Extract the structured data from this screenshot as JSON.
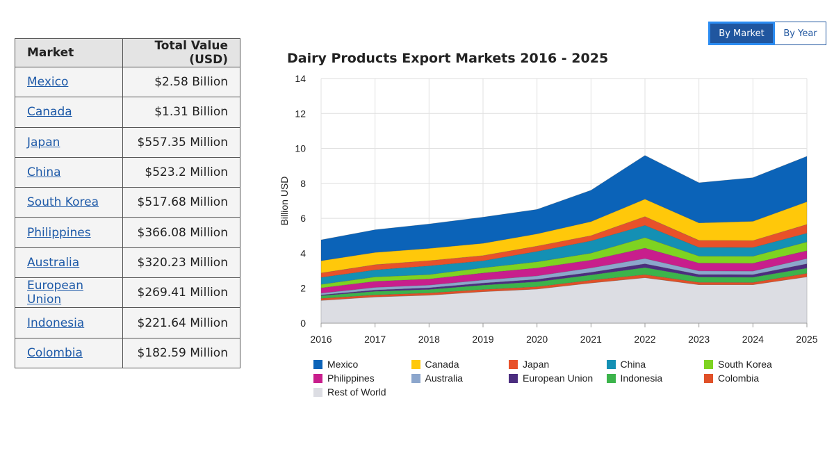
{
  "table": {
    "headers": [
      "Market",
      "Total Value (USD)"
    ],
    "rows": [
      {
        "market": "Mexico",
        "value": "$2.58 Billion"
      },
      {
        "market": "Canada",
        "value": "$1.31 Billion"
      },
      {
        "market": "Japan",
        "value": "$557.35 Million"
      },
      {
        "market": "China",
        "value": "$523.2 Million"
      },
      {
        "market": "South Korea",
        "value": "$517.68 Million"
      },
      {
        "market": "Philippines",
        "value": "$366.08 Million"
      },
      {
        "market": "Australia",
        "value": "$320.23 Million"
      },
      {
        "market": "European Union",
        "value": "$269.41 Million"
      },
      {
        "market": "Indonesia",
        "value": "$221.64 Million"
      },
      {
        "market": "Colombia",
        "value": "$182.59 Million"
      }
    ]
  },
  "toggle": {
    "by_market": "By Market",
    "by_year": "By Year",
    "selected": "By Market"
  },
  "chart_data": {
    "type": "area",
    "stacked": true,
    "title": "Dairy Products Export Markets 2016 - 2025",
    "xlabel": "",
    "ylabel": "Billion USD",
    "ylim": [
      0,
      14
    ],
    "yticks": [
      0,
      2,
      4,
      6,
      8,
      10,
      12,
      14
    ],
    "grid": true,
    "legend_position": "bottom",
    "x": [
      "2016",
      "2017",
      "2018",
      "2019",
      "2020",
      "2021",
      "2022",
      "2023",
      "2024",
      "2025"
    ],
    "series": [
      {
        "name": "Rest of World",
        "color": "#dcdde3",
        "values": [
          1.3,
          1.5,
          1.6,
          1.8,
          1.95,
          2.3,
          2.6,
          2.2,
          2.2,
          2.65
        ]
      },
      {
        "name": "Colombia",
        "color": "#e05028",
        "values": [
          0.12,
          0.12,
          0.13,
          0.13,
          0.14,
          0.16,
          0.18,
          0.14,
          0.13,
          0.2
        ]
      },
      {
        "name": "Indonesia",
        "color": "#3cb44b",
        "values": [
          0.15,
          0.2,
          0.2,
          0.25,
          0.28,
          0.3,
          0.4,
          0.3,
          0.3,
          0.3
        ]
      },
      {
        "name": "European Union",
        "color": "#4b2d7f",
        "values": [
          0.05,
          0.08,
          0.1,
          0.12,
          0.14,
          0.15,
          0.22,
          0.15,
          0.15,
          0.25
        ]
      },
      {
        "name": "Australia",
        "color": "#8ca6cc",
        "values": [
          0.1,
          0.15,
          0.15,
          0.17,
          0.2,
          0.25,
          0.3,
          0.2,
          0.2,
          0.3
        ]
      },
      {
        "name": "Philippines",
        "color": "#c81e8c",
        "values": [
          0.3,
          0.35,
          0.35,
          0.4,
          0.45,
          0.45,
          0.6,
          0.45,
          0.45,
          0.45
        ]
      },
      {
        "name": "South Korea",
        "color": "#7ed321",
        "values": [
          0.2,
          0.25,
          0.25,
          0.3,
          0.35,
          0.4,
          0.6,
          0.4,
          0.4,
          0.5
        ]
      },
      {
        "name": "China",
        "color": "#1490b4",
        "values": [
          0.4,
          0.4,
          0.5,
          0.4,
          0.6,
          0.7,
          0.7,
          0.5,
          0.5,
          0.5
        ]
      },
      {
        "name": "Japan",
        "color": "#e8512a",
        "values": [
          0.25,
          0.3,
          0.3,
          0.3,
          0.3,
          0.3,
          0.5,
          0.4,
          0.4,
          0.5
        ]
      },
      {
        "name": "Canada",
        "color": "#ffc80a",
        "values": [
          0.7,
          0.7,
          0.7,
          0.7,
          0.7,
          0.8,
          1.0,
          1.0,
          1.1,
          1.3
        ]
      },
      {
        "name": "Mexico",
        "color": "#0b63b8",
        "values": [
          1.2,
          1.3,
          1.4,
          1.5,
          1.4,
          1.8,
          2.5,
          2.3,
          2.5,
          2.6
        ]
      }
    ],
    "legend_order": [
      "Mexico",
      "Canada",
      "Japan",
      "China",
      "South Korea",
      "Philippines",
      "Australia",
      "European Union",
      "Indonesia",
      "Colombia",
      "Rest of World"
    ]
  }
}
